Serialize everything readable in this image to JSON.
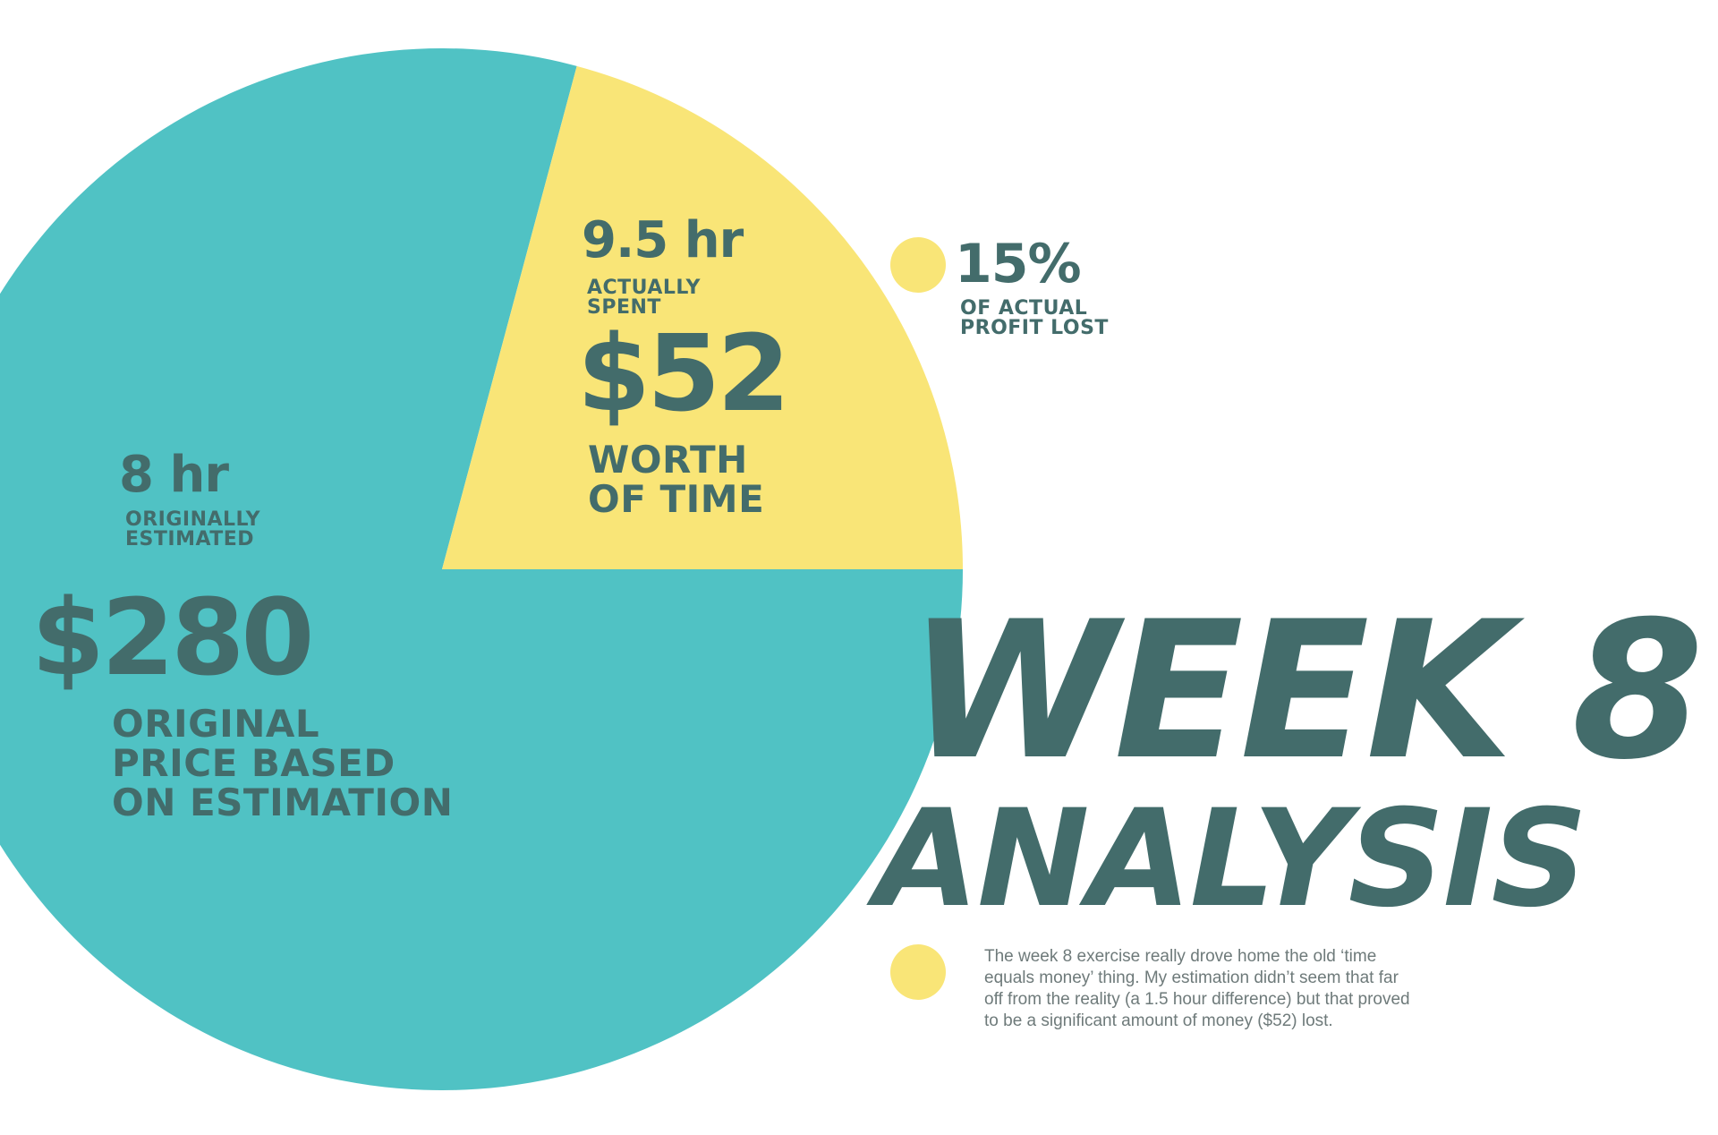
{
  "colors": {
    "teal": "#50c2c4",
    "yellow": "#f9e577",
    "dark_teal": "#436c6b",
    "body_gray": "#6e7a7a",
    "background": "#ffffff"
  },
  "chart_data": {
    "type": "pie",
    "slices": [
      {
        "hours": "8 hr",
        "hours_caption": [
          "ORIGINALLY",
          "ESTIMATED"
        ],
        "price": "$280",
        "price_caption": [
          "ORIGINAL",
          "PRICE BASED",
          "ON ESTIMATION"
        ],
        "value": 280,
        "color": "#50c2c4"
      },
      {
        "hours": "9.5 hr",
        "hours_caption": [
          "ACTUALLY",
          "SPENT"
        ],
        "price": "$52",
        "price_caption": [
          "WORTH",
          "OF TIME"
        ],
        "value": 52,
        "color": "#f9e577"
      }
    ]
  },
  "stat": {
    "value": "15%",
    "caption": [
      "OF ACTUAL",
      "PROFIT LOST"
    ]
  },
  "title": {
    "line1": "WEEK 8",
    "line2": "ANALYSIS"
  },
  "description": {
    "lines": [
      "The week 8 exercise really drove home the old ‘time",
      "equals money’ thing. My estimation didn’t seem that far",
      "off from the reality (a 1.5 hour difference) but that proved",
      "to be a significant amount of money ($52) lost."
    ]
  }
}
